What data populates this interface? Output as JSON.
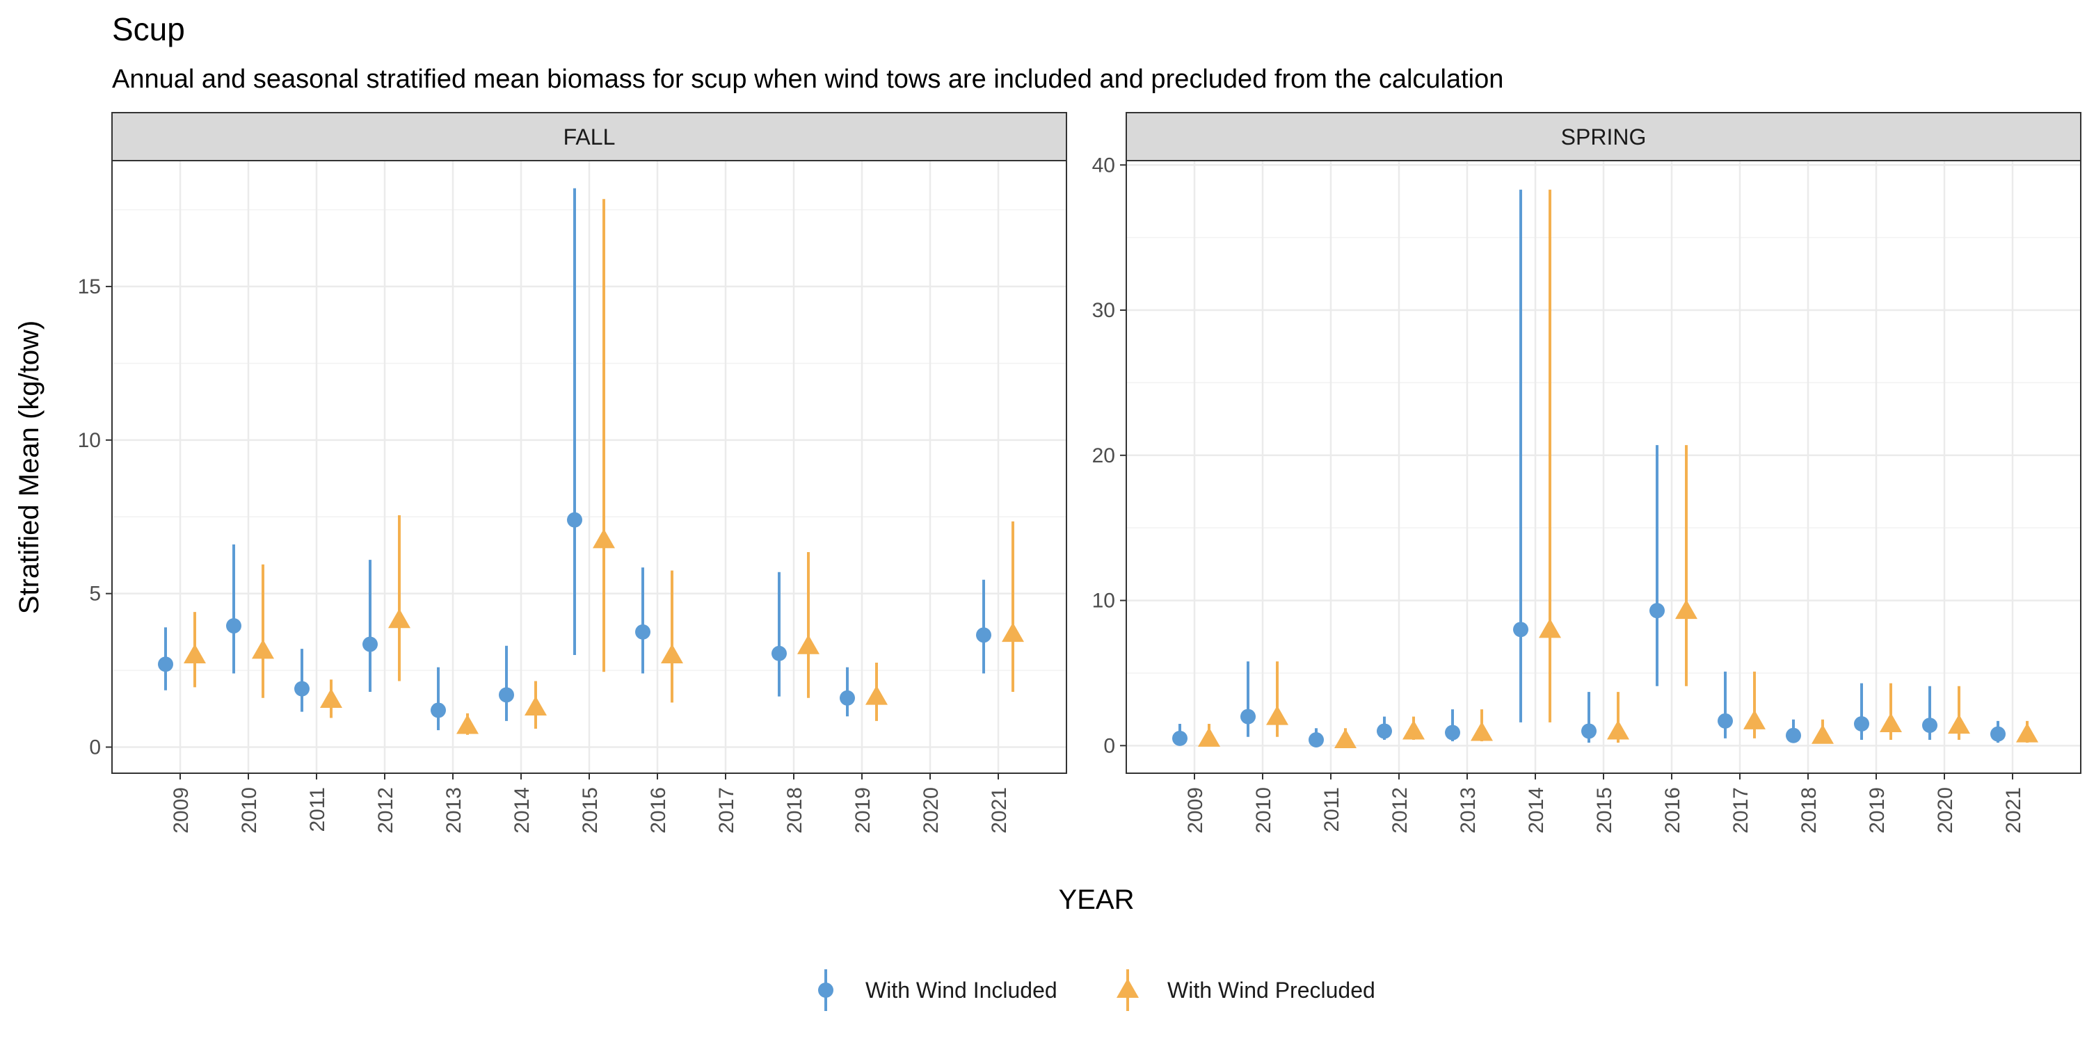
{
  "chart_data": {
    "type": "scatter",
    "title": "Scup",
    "subtitle": "Annual and seasonal stratified mean biomass for scup when wind tows are included and precluded from the calculation",
    "xlabel": "YEAR",
    "ylabel": "Stratified Mean (kg/tow)",
    "legend_position": "bottom",
    "grid": true,
    "series_styles": [
      {
        "name": "With Wind Included",
        "color": "#5B9BD5",
        "marker": "circle"
      },
      {
        "name": "With Wind Precluded",
        "color": "#F4B04F",
        "marker": "triangle"
      }
    ],
    "panels": [
      {
        "name": "FALL",
        "x": [
          "2009",
          "2010",
          "2011",
          "2012",
          "2013",
          "2014",
          "2015",
          "2016",
          "2017",
          "2018",
          "2019",
          "2020",
          "2021"
        ],
        "ylim": [
          -0.85,
          19.1
        ],
        "yticks": [
          0,
          5,
          10,
          15
        ],
        "series": [
          {
            "name": "With Wind Included",
            "values": [
              2.7,
              3.95,
              1.9,
              3.35,
              1.2,
              1.7,
              7.4,
              3.75,
              null,
              3.05,
              1.6,
              null,
              3.65
            ],
            "lower": [
              1.85,
              2.4,
              1.15,
              1.8,
              0.55,
              0.85,
              3.0,
              2.4,
              null,
              1.65,
              1.0,
              null,
              2.4
            ],
            "upper": [
              3.9,
              6.6,
              3.2,
              6.1,
              2.6,
              3.3,
              18.2,
              5.85,
              null,
              5.7,
              2.6,
              null,
              5.45
            ]
          },
          {
            "name": "With Wind Precluded",
            "values": [
              3.0,
              3.15,
              1.55,
              4.15,
              0.7,
              1.3,
              6.75,
              3.0,
              null,
              3.3,
              1.65,
              null,
              3.7
            ],
            "lower": [
              1.95,
              1.6,
              0.95,
              2.15,
              0.4,
              0.6,
              2.45,
              1.45,
              null,
              1.6,
              0.85,
              null,
              1.8
            ],
            "upper": [
              4.4,
              5.95,
              2.2,
              7.55,
              1.1,
              2.15,
              17.85,
              5.75,
              null,
              6.35,
              2.75,
              null,
              7.35
            ]
          }
        ]
      },
      {
        "name": "SPRING",
        "x": [
          "2009",
          "2010",
          "2011",
          "2012",
          "2013",
          "2014",
          "2015",
          "2016",
          "2017",
          "2018",
          "2019",
          "2020",
          "2021"
        ],
        "ylim": [
          -1.9,
          40.3
        ],
        "yticks": [
          0,
          10,
          20,
          30,
          40
        ],
        "series": [
          {
            "name": "With Wind Included",
            "values": [
              0.5,
              2.0,
              0.4,
              1.0,
              0.9,
              8.0,
              1.0,
              9.3,
              1.7,
              0.7,
              1.5,
              1.4,
              0.8
            ],
            "lower": [
              0.1,
              0.6,
              0.1,
              0.4,
              0.3,
              1.6,
              0.2,
              4.1,
              0.5,
              0.2,
              0.4,
              0.4,
              0.2
            ],
            "upper": [
              1.5,
              5.8,
              1.2,
              2.0,
              2.5,
              38.3,
              3.7,
              20.7,
              5.1,
              1.8,
              4.3,
              4.1,
              1.7
            ]
          },
          {
            "name": "With Wind Precluded",
            "values": [
              0.5,
              2.0,
              0.4,
              1.0,
              0.9,
              8.0,
              1.0,
              9.3,
              1.7,
              0.7,
              1.5,
              1.4,
              0.8
            ],
            "lower": [
              0.1,
              0.6,
              0.1,
              0.4,
              0.3,
              1.6,
              0.2,
              4.1,
              0.5,
              0.2,
              0.4,
              0.4,
              0.2
            ],
            "upper": [
              1.5,
              5.8,
              1.2,
              2.0,
              2.5,
              38.3,
              3.7,
              20.7,
              5.1,
              1.8,
              4.3,
              4.1,
              1.7
            ]
          }
        ]
      }
    ]
  }
}
